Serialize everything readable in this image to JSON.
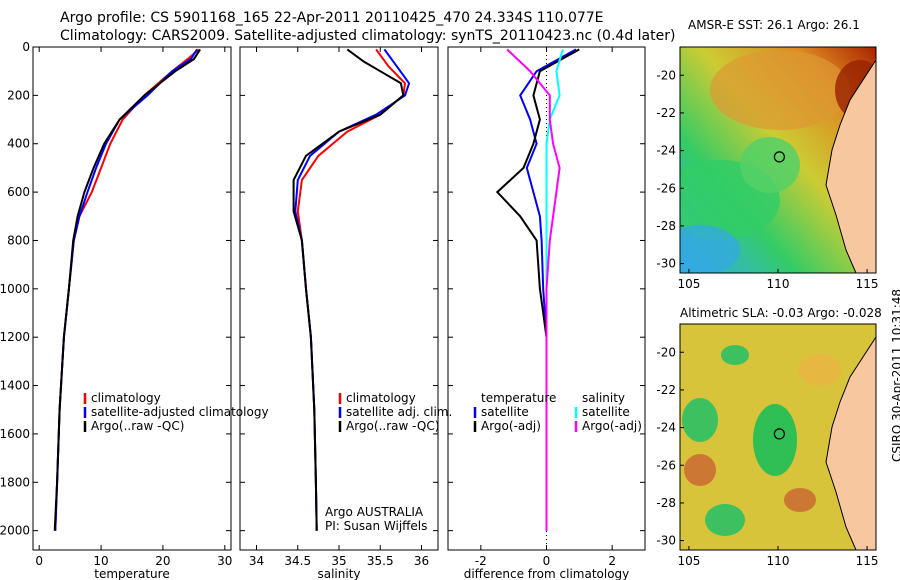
{
  "header": {
    "line1": "Argo profile: CS 5901168_165 22-Apr-2011 20110425_470 24.334S 110.077E",
    "line2": "Climatology: CARS2009. Satellite-adjusted climatology: synTS_20110423.nc (0.4d later)"
  },
  "stamp": "CSIRO 30-Apr-2011 10:31:48",
  "colors": {
    "climatology": "#ff0000",
    "satellite": "#0000ff",
    "argo": "#000000",
    "sat_sal": "#00ffff",
    "argo_sal": "#ff00ff"
  },
  "chart_data": [
    {
      "type": "line",
      "xlabel": "temperature",
      "ylabel": "",
      "xlim": [
        -1,
        31
      ],
      "ylim": [
        2080,
        0
      ],
      "xticks": [
        0,
        10,
        20,
        30
      ],
      "yticks": [
        0,
        200,
        400,
        600,
        800,
        1000,
        1200,
        1400,
        1600,
        1800,
        2000
      ],
      "legend": {
        "position": "lower-right",
        "entries": [
          "climatology",
          "satellite-adjusted climatology",
          "Argo(..raw -QC)"
        ]
      },
      "series": [
        {
          "name": "climatology",
          "color": "#ff0000",
          "x": [
            25.8,
            24.0,
            21.5,
            17.0,
            13.5,
            11.5,
            10.0,
            8.5,
            6.5,
            5.6,
            4.8,
            4.0,
            3.3,
            2.9,
            2.6
          ],
          "y": [
            10,
            50,
            100,
            200,
            300,
            400,
            500,
            600,
            700,
            800,
            1000,
            1200,
            1500,
            1800,
            2000
          ]
        },
        {
          "name": "satellite-adjusted climatology",
          "color": "#0000ff",
          "x": [
            25.5,
            24.5,
            21.5,
            17.5,
            13.0,
            10.8,
            9.2,
            7.8,
            6.5,
            5.6,
            4.8,
            4.0,
            3.3,
            2.9,
            2.6
          ],
          "y": [
            10,
            50,
            100,
            200,
            300,
            400,
            500,
            600,
            700,
            800,
            1000,
            1200,
            1500,
            1800,
            2000
          ]
        },
        {
          "name": "Argo(..raw -QC)",
          "color": "#000000",
          "x": [
            26.0,
            25.0,
            22.0,
            17.0,
            13.0,
            10.5,
            8.8,
            7.3,
            6.2,
            5.5,
            4.8,
            4.0,
            3.3,
            2.9,
            2.5
          ],
          "y": [
            10,
            50,
            100,
            200,
            300,
            400,
            500,
            600,
            700,
            800,
            1000,
            1200,
            1500,
            1800,
            2000
          ]
        }
      ]
    },
    {
      "type": "line",
      "xlabel": "salinity",
      "ylabel": "",
      "xlim": [
        33.8,
        36.2
      ],
      "ylim": [
        2080,
        0
      ],
      "xticks": [
        34,
        34.5,
        35,
        35.5,
        36
      ],
      "yticks": [
        0,
        200,
        400,
        600,
        800,
        1000,
        1200,
        1400,
        1600,
        1800,
        2000
      ],
      "legend": {
        "position": "lower-right",
        "entries": [
          "climatology",
          "satellite adj. clim.",
          "Argo(..raw -QC)"
        ]
      },
      "annotation": [
        "Argo AUSTRALIA",
        "PI: Susan Wijffels"
      ],
      "series": [
        {
          "name": "climatology",
          "color": "#ff0000",
          "x": [
            35.45,
            35.6,
            35.8,
            35.78,
            35.5,
            35.1,
            34.75,
            34.55,
            34.5,
            34.55,
            34.6,
            34.66,
            34.7,
            34.72,
            34.73
          ],
          "y": [
            10,
            80,
            150,
            200,
            280,
            350,
            450,
            550,
            680,
            800,
            1000,
            1200,
            1500,
            1800,
            2000
          ]
        },
        {
          "name": "satellite adj. clim.",
          "color": "#0000ff",
          "x": [
            35.55,
            35.7,
            35.85,
            35.8,
            35.45,
            35.0,
            34.65,
            34.5,
            34.47,
            34.55,
            34.6,
            34.66,
            34.7,
            34.72,
            34.73
          ],
          "y": [
            10,
            80,
            150,
            200,
            280,
            350,
            450,
            550,
            680,
            800,
            1000,
            1200,
            1500,
            1800,
            2000
          ]
        },
        {
          "name": "Argo(..raw -QC)",
          "color": "#000000",
          "x": [
            35.1,
            35.3,
            35.75,
            35.78,
            35.5,
            35.0,
            34.6,
            34.45,
            34.45,
            34.55,
            34.6,
            34.66,
            34.7,
            34.72,
            34.73
          ],
          "y": [
            10,
            60,
            150,
            200,
            280,
            350,
            450,
            550,
            680,
            800,
            1000,
            1200,
            1500,
            1800,
            2000
          ]
        }
      ]
    },
    {
      "type": "line",
      "xlabel": "difference from climatology",
      "ylabel": "",
      "xlim": [
        -3,
        3
      ],
      "ylim": [
        2080,
        0
      ],
      "xticks": [
        -2,
        0,
        2
      ],
      "yticks": [
        0,
        200,
        400,
        600,
        800,
        1000,
        1200,
        1400,
        1600,
        1800,
        2000
      ],
      "legend": {
        "position": "lower",
        "entries": [
          "temperature",
          "satellite",
          "Argo(-adj)",
          "salinity",
          "satellite",
          "Argo(-adj)"
        ]
      },
      "series": [
        {
          "name": "temperature satellite",
          "color": "#0000ff",
          "x": [
            0.9,
            -0.3,
            -0.8,
            -0.5,
            -0.3,
            -0.6,
            -0.4,
            -0.2,
            -0.15,
            -0.1,
            0,
            0,
            0,
            0
          ],
          "y": [
            10,
            100,
            200,
            300,
            400,
            500,
            600,
            700,
            800,
            1000,
            1200,
            1500,
            1800,
            2000
          ]
        },
        {
          "name": "temperature Argo(-adj)",
          "color": "#000000",
          "x": [
            1.0,
            -0.2,
            -0.4,
            -0.2,
            -0.4,
            -0.7,
            -1.5,
            -0.8,
            -0.3,
            -0.2,
            0,
            0,
            0,
            0
          ],
          "y": [
            10,
            100,
            200,
            300,
            400,
            500,
            600,
            700,
            800,
            1000,
            1200,
            1500,
            1800,
            2000
          ]
        },
        {
          "name": "salinity satellite",
          "color": "#00ffff",
          "x": [
            0.5,
            0.3,
            0.4,
            0.1,
            0,
            0,
            0,
            0,
            0,
            0,
            0,
            0,
            0,
            0
          ],
          "y": [
            10,
            100,
            200,
            300,
            400,
            500,
            600,
            700,
            800,
            1000,
            1200,
            1500,
            1800,
            2000
          ]
        },
        {
          "name": "salinity Argo(-adj)",
          "color": "#ff00ff",
          "x": [
            -1.2,
            -0.5,
            0.1,
            0.1,
            0.2,
            0.4,
            0.3,
            0.2,
            0.1,
            0,
            0,
            0,
            0,
            0
          ],
          "y": [
            10,
            100,
            200,
            300,
            400,
            500,
            600,
            700,
            800,
            1000,
            1200,
            1500,
            1800,
            2000
          ]
        }
      ]
    },
    {
      "type": "heatmap",
      "title": "AMSR-E SST: 26.1 Argo: 26.1",
      "xlim": [
        104.5,
        115.5
      ],
      "ylim": [
        -30.5,
        -18.5
      ],
      "xticks": [
        105,
        110,
        115
      ],
      "yticks": [
        -20,
        -22,
        -24,
        -26,
        -28,
        -30
      ],
      "marker": {
        "lon": 110.077,
        "lat": -24.334
      }
    },
    {
      "type": "heatmap",
      "title": "Altimetric SLA: -0.03 Argo: -0.028",
      "xlim": [
        104.5,
        115.5
      ],
      "ylim": [
        -30.5,
        -18.5
      ],
      "xticks": [
        105,
        110,
        115
      ],
      "yticks": [
        -20,
        -22,
        -24,
        -26,
        -28,
        -30
      ],
      "marker": {
        "lon": 110.077,
        "lat": -24.334
      }
    }
  ]
}
